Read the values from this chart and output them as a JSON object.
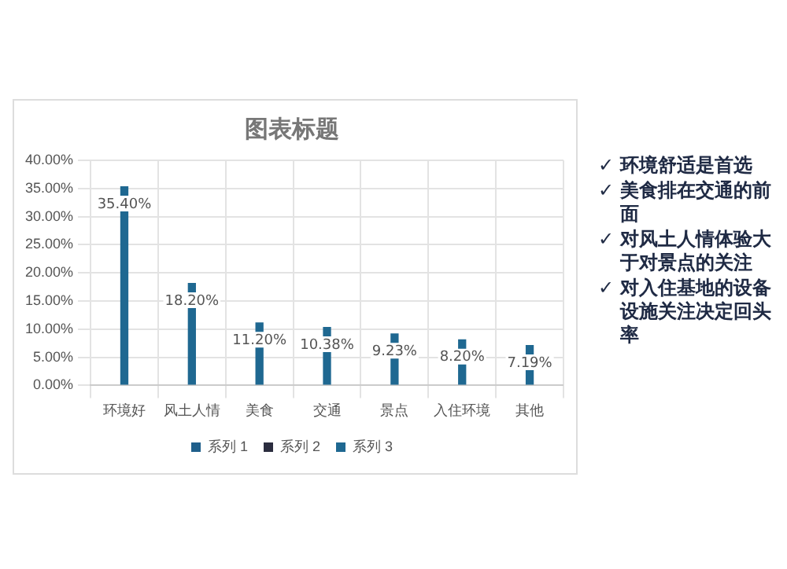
{
  "chart_data": {
    "type": "bar",
    "title": "图表标题",
    "categories": [
      "环境好",
      "风土人情",
      "美食",
      "交通",
      "景点",
      "入住环境",
      "其他"
    ],
    "series": [
      {
        "name": "系列 1",
        "color": "#1f5f8b",
        "values": [
          null,
          null,
          null,
          null,
          null,
          null,
          null
        ]
      },
      {
        "name": "系列 2",
        "color": "#2b2d3f",
        "values": [
          null,
          null,
          null,
          null,
          null,
          null,
          null
        ]
      },
      {
        "name": "系列 3",
        "color": "#1f6891",
        "values": [
          35.4,
          18.2,
          11.2,
          10.38,
          9.23,
          8.2,
          7.19
        ]
      }
    ],
    "ylim": [
      0,
      40
    ],
    "yticks": [
      {
        "value": 0,
        "label": "0.00%"
      },
      {
        "value": 5,
        "label": "5.00%"
      },
      {
        "value": 10,
        "label": "10.00%"
      },
      {
        "value": 15,
        "label": "15.00%"
      },
      {
        "value": 20,
        "label": "20.00%"
      },
      {
        "value": 25,
        "label": "25.00%"
      },
      {
        "value": 30,
        "label": "30.00%"
      },
      {
        "value": 35,
        "label": "35.00%"
      },
      {
        "value": 40,
        "label": "40.00%"
      }
    ],
    "value_labels": [
      "35.40%",
      "18.20%",
      "11.20%",
      "10.38%",
      "9.23%",
      "8.20%",
      "7.19%"
    ],
    "grid": true,
    "legend": "bottom",
    "annotations": [
      "✓ 环境舒适是首选",
      "✓ 美食排在交通的前面",
      "✓ 对风土人情体验大于对景点的关注",
      "✓ 对入住基地的设备设施关注决定回头率"
    ]
  }
}
